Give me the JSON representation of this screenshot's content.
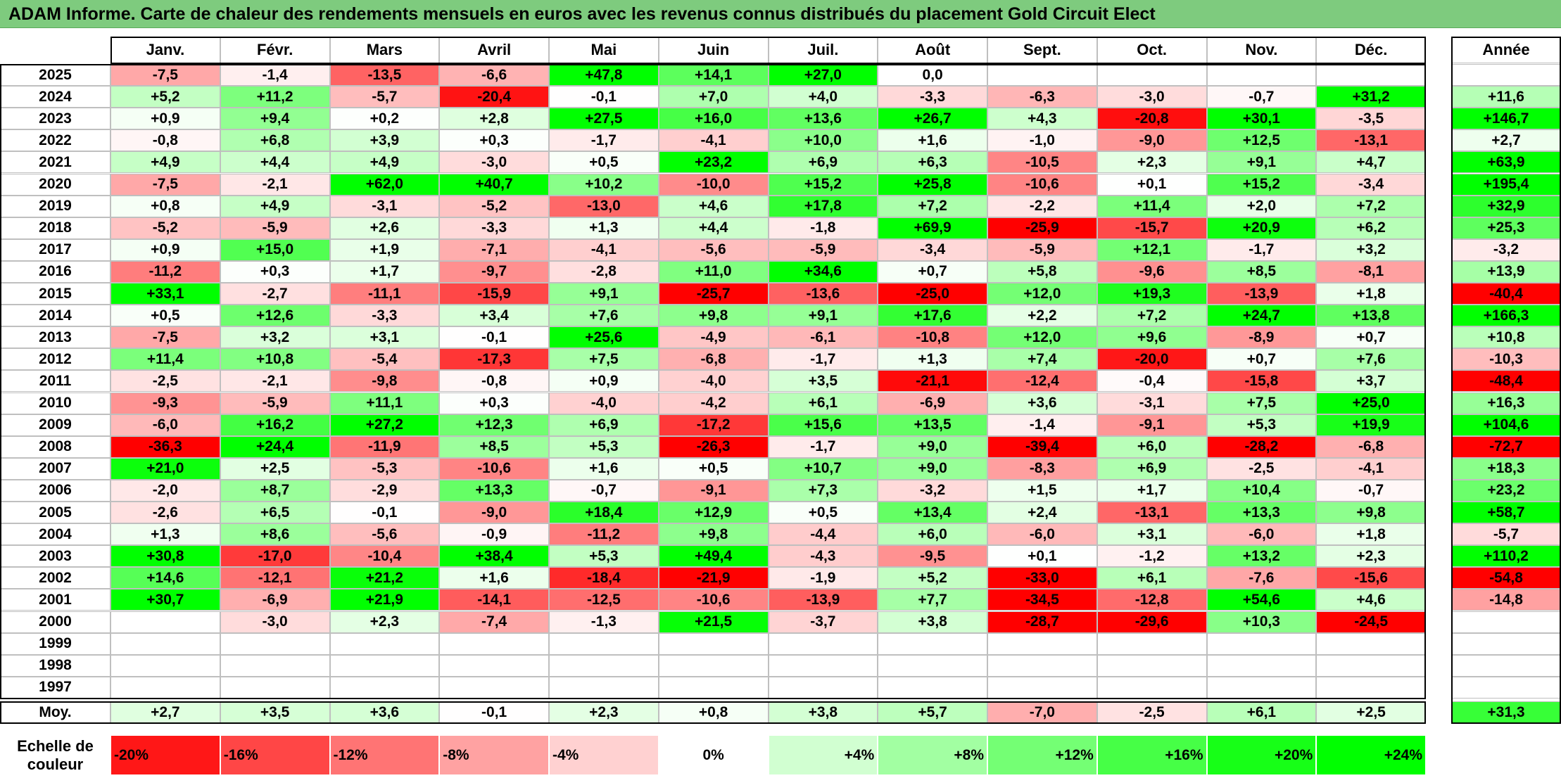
{
  "title": "ADAM Informe. Carte de chaleur des rendements mensuels en euros avec les revenus connus distribués du placement Gold Circuit Elect",
  "chart_data": {
    "type": "heatmap",
    "months": [
      "Janv.",
      "Févr.",
      "Mars",
      "Avril",
      "Mai",
      "Juin",
      "Juil.",
      "Août",
      "Sept.",
      "Oct.",
      "Nov.",
      "Déc."
    ],
    "year_header": "Année",
    "rows": [
      {
        "year": "2025",
        "months": [
          "-7,5",
          "-1,4",
          "-13,5",
          "-6,6",
          "+47,8",
          "+14,1",
          "+27,0",
          "0,0",
          "",
          "",
          "",
          ""
        ],
        "annual": ""
      },
      {
        "year": "2024",
        "months": [
          "+5,2",
          "+11,2",
          "-5,7",
          "-20,4",
          "-0,1",
          "+7,0",
          "+4,0",
          "-3,3",
          "-6,3",
          "-3,0",
          "-0,7",
          "+31,2"
        ],
        "annual": "+11,6"
      },
      {
        "year": "2023",
        "months": [
          "+0,9",
          "+9,4",
          "+0,2",
          "+2,8",
          "+27,5",
          "+16,0",
          "+13,6",
          "+26,7",
          "+4,3",
          "-20,8",
          "+30,1",
          "-3,5"
        ],
        "annual": "+146,7"
      },
      {
        "year": "2022",
        "months": [
          "-0,8",
          "+6,8",
          "+3,9",
          "+0,3",
          "-1,7",
          "-4,1",
          "+10,0",
          "+1,6",
          "-1,0",
          "-9,0",
          "+12,5",
          "-13,1"
        ],
        "annual": "+2,7"
      },
      {
        "year": "2021",
        "months": [
          "+4,9",
          "+4,4",
          "+4,9",
          "-3,0",
          "+0,5",
          "+23,2",
          "+6,9",
          "+6,3",
          "-10,5",
          "+2,3",
          "+9,1",
          "+4,7"
        ],
        "annual": "+63,9"
      },
      {
        "year": "2020",
        "months": [
          "-7,5",
          "-2,1",
          "+62,0",
          "+40,7",
          "+10,2",
          "-10,0",
          "+15,2",
          "+25,8",
          "-10,6",
          "+0,1",
          "+15,2",
          "-3,4"
        ],
        "annual": "+195,4"
      },
      {
        "year": "2019",
        "months": [
          "+0,8",
          "+4,9",
          "-3,1",
          "-5,2",
          "-13,0",
          "+4,6",
          "+17,8",
          "+7,2",
          "-2,2",
          "+11,4",
          "+2,0",
          "+7,2"
        ],
        "annual": "+32,9"
      },
      {
        "year": "2018",
        "months": [
          "-5,2",
          "-5,9",
          "+2,6",
          "-3,3",
          "+1,3",
          "+4,4",
          "-1,8",
          "+69,9",
          "-25,9",
          "-15,7",
          "+20,9",
          "+6,2"
        ],
        "annual": "+25,3"
      },
      {
        "year": "2017",
        "months": [
          "+0,9",
          "+15,0",
          "+1,9",
          "-7,1",
          "-4,1",
          "-5,6",
          "-5,9",
          "-3,4",
          "-5,9",
          "+12,1",
          "-1,7",
          "+3,2"
        ],
        "annual": "-3,2"
      },
      {
        "year": "2016",
        "months": [
          "-11,2",
          "+0,3",
          "+1,7",
          "-9,7",
          "-2,8",
          "+11,0",
          "+34,6",
          "+0,7",
          "+5,8",
          "-9,6",
          "+8,5",
          "-8,1"
        ],
        "annual": "+13,9"
      },
      {
        "year": "2015",
        "months": [
          "+33,1",
          "-2,7",
          "-11,1",
          "-15,9",
          "+9,1",
          "-25,7",
          "-13,6",
          "-25,0",
          "+12,0",
          "+19,3",
          "-13,9",
          "+1,8"
        ],
        "annual": "-40,4"
      },
      {
        "year": "2014",
        "months": [
          "+0,5",
          "+12,6",
          "-3,3",
          "+3,4",
          "+7,6",
          "+9,8",
          "+9,1",
          "+17,6",
          "+2,2",
          "+7,2",
          "+24,7",
          "+13,8"
        ],
        "annual": "+166,3"
      },
      {
        "year": "2013",
        "months": [
          "-7,5",
          "+3,2",
          "+3,1",
          "-0,1",
          "+25,6",
          "-4,9",
          "-6,1",
          "-10,8",
          "+12,0",
          "+9,6",
          "-8,9",
          "+0,7"
        ],
        "annual": "+10,8"
      },
      {
        "year": "2012",
        "months": [
          "+11,4",
          "+10,8",
          "-5,4",
          "-17,3",
          "+7,5",
          "-6,8",
          "-1,7",
          "+1,3",
          "+7,4",
          "-20,0",
          "+0,7",
          "+7,6"
        ],
        "annual": "-10,3"
      },
      {
        "year": "2011",
        "months": [
          "-2,5",
          "-2,1",
          "-9,8",
          "-0,8",
          "+0,9",
          "-4,0",
          "+3,5",
          "-21,1",
          "-12,4",
          "-0,4",
          "-15,8",
          "+3,7"
        ],
        "annual": "-48,4"
      },
      {
        "year": "2010",
        "months": [
          "-9,3",
          "-5,9",
          "+11,1",
          "+0,3",
          "-4,0",
          "-4,2",
          "+6,1",
          "-6,9",
          "+3,6",
          "-3,1",
          "+7,5",
          "+25,0"
        ],
        "annual": "+16,3"
      },
      {
        "year": "2009",
        "months": [
          "-6,0",
          "+16,2",
          "+27,2",
          "+12,3",
          "+6,9",
          "-17,2",
          "+15,6",
          "+13,5",
          "-1,4",
          "-9,1",
          "+5,3",
          "+19,9"
        ],
        "annual": "+104,6"
      },
      {
        "year": "2008",
        "months": [
          "-36,3",
          "+24,4",
          "-11,9",
          "+8,5",
          "+5,3",
          "-26,3",
          "-1,7",
          "+9,0",
          "-39,4",
          "+6,0",
          "-28,2",
          "-6,8"
        ],
        "annual": "-72,7"
      },
      {
        "year": "2007",
        "months": [
          "+21,0",
          "+2,5",
          "-5,3",
          "-10,6",
          "+1,6",
          "+0,5",
          "+10,7",
          "+9,0",
          "-8,3",
          "+6,9",
          "-2,5",
          "-4,1"
        ],
        "annual": "+18,3"
      },
      {
        "year": "2006",
        "months": [
          "-2,0",
          "+8,7",
          "-2,9",
          "+13,3",
          "-0,7",
          "-9,1",
          "+7,3",
          "-3,2",
          "+1,5",
          "+1,7",
          "+10,4",
          "-0,7"
        ],
        "annual": "+23,2"
      },
      {
        "year": "2005",
        "months": [
          "-2,6",
          "+6,5",
          "-0,1",
          "-9,0",
          "+18,4",
          "+12,9",
          "+0,5",
          "+13,4",
          "+2,4",
          "-13,1",
          "+13,3",
          "+9,8"
        ],
        "annual": "+58,7"
      },
      {
        "year": "2004",
        "months": [
          "+1,3",
          "+8,6",
          "-5,6",
          "-0,9",
          "-11,2",
          "+9,8",
          "-4,4",
          "+6,0",
          "-6,0",
          "+3,1",
          "-6,0",
          "+1,8"
        ],
        "annual": "-5,7"
      },
      {
        "year": "2003",
        "months": [
          "+30,8",
          "-17,0",
          "-10,4",
          "+38,4",
          "+5,3",
          "+49,4",
          "-4,3",
          "-9,5",
          "+0,1",
          "-1,2",
          "+13,2",
          "+2,3"
        ],
        "annual": "+110,2"
      },
      {
        "year": "2002",
        "months": [
          "+14,6",
          "-12,1",
          "+21,2",
          "+1,6",
          "-18,4",
          "-21,9",
          "-1,9",
          "+5,2",
          "-33,0",
          "+6,1",
          "-7,6",
          "-15,6"
        ],
        "annual": "-54,8"
      },
      {
        "year": "2001",
        "months": [
          "+30,7",
          "-6,9",
          "+21,9",
          "-14,1",
          "-12,5",
          "-10,6",
          "-13,9",
          "+7,7",
          "-34,5",
          "-12,8",
          "+54,6",
          "+4,6"
        ],
        "annual": "-14,8"
      },
      {
        "year": "2000",
        "months": [
          "",
          "-3,0",
          "+2,3",
          "-7,4",
          "-1,3",
          "+21,5",
          "-3,7",
          "+3,8",
          "-28,7",
          "-29,6",
          "+10,3",
          "-24,5"
        ],
        "annual": ""
      },
      {
        "year": "1999",
        "months": [
          "",
          "",
          "",
          "",
          "",
          "",
          "",
          "",
          "",
          "",
          "",
          ""
        ],
        "annual": ""
      },
      {
        "year": "1998",
        "months": [
          "",
          "",
          "",
          "",
          "",
          "",
          "",
          "",
          "",
          "",
          "",
          ""
        ],
        "annual": ""
      },
      {
        "year": "1997",
        "months": [
          "",
          "",
          "",
          "",
          "",
          "",
          "",
          "",
          "",
          "",
          "",
          ""
        ],
        "annual": ""
      }
    ],
    "average": {
      "label": "Moy.",
      "months": [
        "+2,7",
        "+3,5",
        "+3,6",
        "-0,1",
        "+2,3",
        "+0,8",
        "+3,8",
        "+5,7",
        "-7,0",
        "-2,5",
        "+6,1",
        "+2,5"
      ],
      "annual": "+31,3"
    },
    "scale": {
      "label_line1": "Echelle de",
      "label_line2": "couleur",
      "steps": [
        "-20%",
        "-16%",
        "-12%",
        "-8%",
        "-4%",
        "0%",
        "+4%",
        "+8%",
        "+12%",
        "+16%",
        "+20%",
        "+24%"
      ]
    },
    "colors": {
      "negative": "#ff0000",
      "positive": "#00ff00",
      "neutral": "#ffffff",
      "title_bg": "#7ecb7e"
    }
  }
}
